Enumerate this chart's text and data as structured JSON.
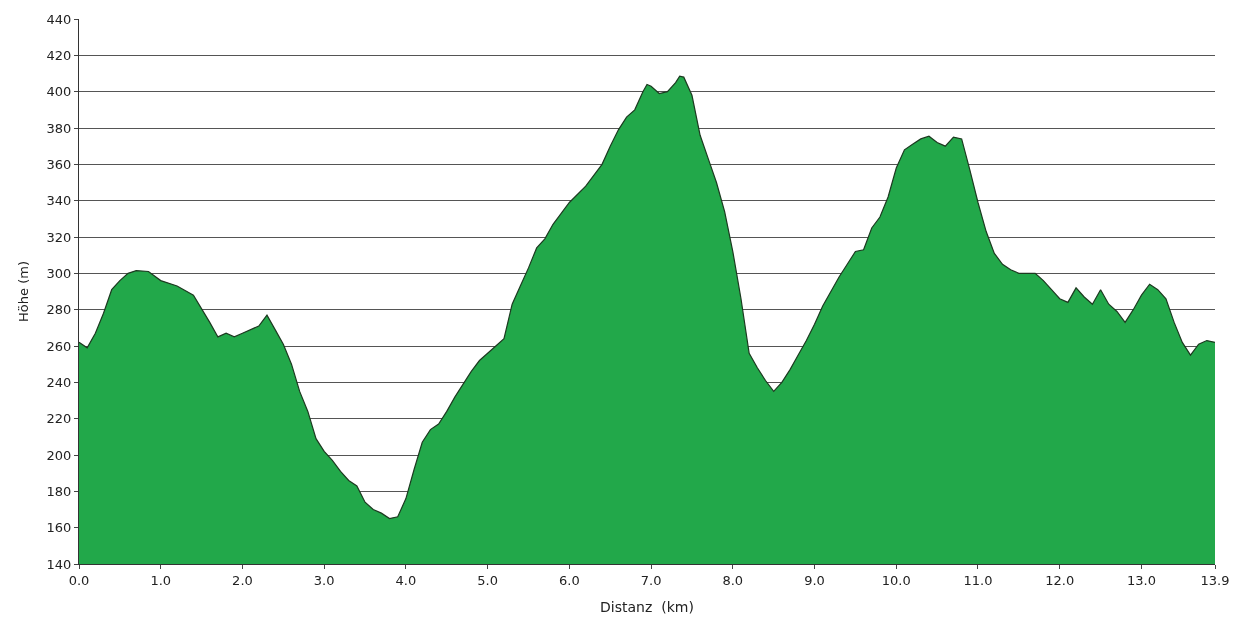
{
  "chart_data": {
    "type": "area",
    "xlabel": "Distanz  (km)",
    "ylabel": "Höhe (m)",
    "xlim": [
      0,
      13.9
    ],
    "ylim": [
      140,
      440
    ],
    "xticks": [
      {
        "value": 0,
        "label": "0.0"
      },
      {
        "value": 1,
        "label": "1.0"
      },
      {
        "value": 2,
        "label": "2.0"
      },
      {
        "value": 3,
        "label": "3.0"
      },
      {
        "value": 4,
        "label": "4.0"
      },
      {
        "value": 5,
        "label": "5.0"
      },
      {
        "value": 6,
        "label": "6.0"
      },
      {
        "value": 7,
        "label": "7.0"
      },
      {
        "value": 8,
        "label": "8.0"
      },
      {
        "value": 9,
        "label": "9.0"
      },
      {
        "value": 10,
        "label": "10.0"
      },
      {
        "value": 11,
        "label": "11.0"
      },
      {
        "value": 12,
        "label": "12.0"
      },
      {
        "value": 13,
        "label": "13.0"
      },
      13.9
    ],
    "yticks": [
      140,
      160,
      180,
      200,
      220,
      240,
      260,
      280,
      300,
      320,
      340,
      360,
      380,
      400,
      420,
      440
    ],
    "grid": "y",
    "legend": false,
    "x": [
      0,
      0.1,
      0.2,
      0.3,
      0.4,
      0.5,
      0.6,
      0.7,
      0.85,
      1.0,
      1.2,
      1.4,
      1.6,
      1.7,
      1.8,
      1.9,
      2.0,
      2.2,
      2.3,
      2.4,
      2.5,
      2.6,
      2.7,
      2.8,
      2.9,
      3.0,
      3.1,
      3.2,
      3.3,
      3.4,
      3.5,
      3.6,
      3.7,
      3.8,
      3.9,
      4.0,
      4.1,
      4.2,
      4.3,
      4.4,
      4.5,
      4.6,
      4.7,
      4.8,
      4.9,
      5.0,
      5.1,
      5.2,
      5.3,
      5.4,
      5.5,
      5.6,
      5.7,
      5.8,
      5.9,
      6.0,
      6.2,
      6.4,
      6.5,
      6.6,
      6.7,
      6.8,
      6.9,
      6.95,
      7.0,
      7.1,
      7.2,
      7.3,
      7.35,
      7.4,
      7.5,
      7.6,
      7.7,
      7.8,
      7.9,
      8.0,
      8.1,
      8.2,
      8.3,
      8.4,
      8.5,
      8.6,
      8.7,
      8.8,
      8.9,
      9.0,
      9.1,
      9.2,
      9.3,
      9.4,
      9.5,
      9.6,
      9.7,
      9.8,
      9.9,
      10.0,
      10.1,
      10.2,
      10.3,
      10.4,
      10.5,
      10.6,
      10.7,
      10.8,
      10.9,
      11.0,
      11.1,
      11.2,
      11.3,
      11.4,
      11.5,
      11.7,
      11.8,
      11.9,
      12.0,
      12.1,
      12.2,
      12.3,
      12.4,
      12.5,
      12.6,
      12.7,
      12.8,
      12.9,
      13.0,
      13.1,
      13.2,
      13.3,
      13.4,
      13.5,
      13.6,
      13.7,
      13.8,
      13.9
    ],
    "series": [
      {
        "color": "#22a84a",
        "values": [
          262,
          259,
          267,
          278,
          291,
          296,
          300,
          301.5,
          301,
          296,
          293,
          288,
          273,
          265,
          267,
          265,
          267,
          271,
          277,
          269,
          261,
          250,
          235,
          224,
          209,
          202,
          197,
          191,
          186,
          183,
          174,
          170,
          168,
          165,
          166,
          176,
          192,
          207,
          214,
          217,
          224,
          232,
          239,
          246,
          252,
          256,
          260,
          264,
          283,
          293,
          303,
          314,
          319,
          327,
          333,
          339,
          348,
          360,
          370,
          379,
          386,
          390,
          400,
          404,
          403,
          399,
          400,
          405,
          408.5,
          408,
          398,
          376,
          363,
          350,
          334,
          312,
          286,
          256,
          248,
          241,
          235,
          240,
          247,
          255,
          263,
          272,
          282,
          290,
          298,
          305,
          312,
          313,
          325,
          331,
          342,
          358,
          368,
          371,
          374,
          375.5,
          372,
          370,
          375,
          374,
          357,
          339,
          323,
          311,
          305,
          302,
          300,
          300,
          296,
          291,
          286,
          284,
          292,
          287,
          283,
          291,
          283,
          279,
          273,
          280,
          288,
          294,
          291,
          286,
          273,
          262,
          255,
          261,
          263,
          262
        ]
      }
    ]
  }
}
